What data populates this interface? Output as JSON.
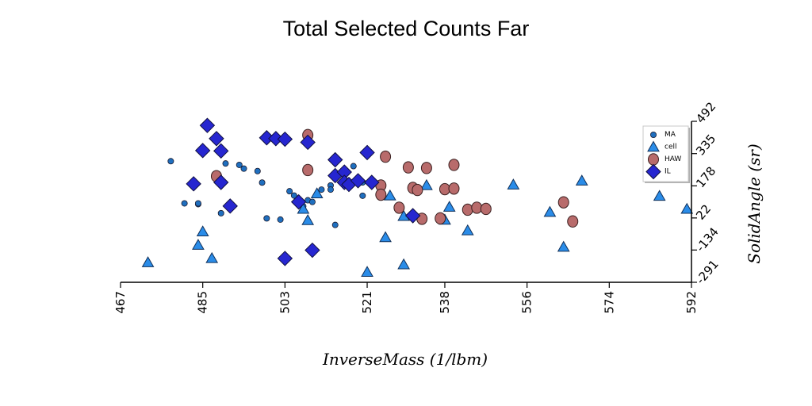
{
  "chart_data": {
    "type": "scatter",
    "title": "Total Selected Counts Far",
    "xlabel": "InverseMass (1/lbm)",
    "ylabel": "SolidAngle (sr)",
    "xlim": [
      467,
      592
    ],
    "ylim": [
      -291,
      492
    ],
    "x_ticks": [
      "467",
      "485",
      "503",
      "521",
      "538",
      "556",
      "574",
      "592"
    ],
    "y_ticks": [
      "-291",
      "-134",
      "22",
      "178",
      "335",
      "492"
    ],
    "legend_position": "upper-right",
    "series": [
      {
        "name": "MA",
        "marker": "circle-small",
        "color": "#1f6fbf",
        "points": [
          [
            478,
            298
          ],
          [
            481,
            93
          ],
          [
            484,
            89
          ],
          [
            484,
            93
          ],
          [
            489,
            45
          ],
          [
            490,
            287
          ],
          [
            493,
            280
          ],
          [
            494,
            262
          ],
          [
            497,
            250
          ],
          [
            498,
            194
          ],
          [
            499,
            20
          ],
          [
            502,
            14
          ],
          [
            504,
            152
          ],
          [
            505,
            131
          ],
          [
            507,
            79
          ],
          [
            508,
            108
          ],
          [
            509,
            100
          ],
          [
            511,
            160
          ],
          [
            513,
            180
          ],
          [
            513,
            160
          ],
          [
            514,
            -12
          ],
          [
            516,
            202
          ],
          [
            518,
            274
          ],
          [
            520,
            195
          ],
          [
            520,
            130
          ]
        ]
      },
      {
        "name": "cell",
        "marker": "triangle",
        "color": "#2a8ce8",
        "points": [
          [
            473,
            -195
          ],
          [
            484,
            -110
          ],
          [
            485,
            -45
          ],
          [
            487,
            -175
          ],
          [
            507,
            65
          ],
          [
            508,
            10
          ],
          [
            510,
            140
          ],
          [
            521,
            -242
          ],
          [
            525,
            -73
          ],
          [
            526,
            130
          ],
          [
            529,
            30
          ],
          [
            529,
            -205
          ],
          [
            534,
            180
          ],
          [
            538,
            12
          ],
          [
            539,
            75
          ],
          [
            543,
            -40
          ],
          [
            553,
            183
          ],
          [
            561,
            50
          ],
          [
            564,
            -120
          ],
          [
            568,
            202
          ],
          [
            585,
            128
          ],
          [
            591,
            65
          ]
        ]
      },
      {
        "name": "HAW",
        "marker": "circle-large",
        "color": "#b86b6b",
        "points": [
          [
            488,
            225
          ],
          [
            508,
            425
          ],
          [
            508,
            255
          ],
          [
            524,
            180
          ],
          [
            524,
            135
          ],
          [
            525,
            320
          ],
          [
            528,
            72
          ],
          [
            530,
            268
          ],
          [
            531,
            168
          ],
          [
            532,
            158
          ],
          [
            533,
            18
          ],
          [
            534,
            265
          ],
          [
            537,
            20
          ],
          [
            538,
            162
          ],
          [
            540,
            280
          ],
          [
            540,
            165
          ],
          [
            543,
            62
          ],
          [
            545,
            72
          ],
          [
            547,
            66
          ],
          [
            564,
            98
          ],
          [
            566,
            5
          ]
        ]
      },
      {
        "name": "IL",
        "marker": "diamond",
        "color": "#2626d0",
        "points": [
          [
            483,
            188
          ],
          [
            485,
            350
          ],
          [
            486,
            472
          ],
          [
            488,
            408
          ],
          [
            489,
            348
          ],
          [
            489,
            195
          ],
          [
            491,
            80
          ],
          [
            499,
            412
          ],
          [
            501,
            408
          ],
          [
            503,
            405
          ],
          [
            503,
            -175
          ],
          [
            506,
            100
          ],
          [
            508,
            390
          ],
          [
            509,
            -135
          ],
          [
            514,
            305
          ],
          [
            514,
            228
          ],
          [
            516,
            245
          ],
          [
            516,
            195
          ],
          [
            517,
            185
          ],
          [
            519,
            203
          ],
          [
            521,
            340
          ],
          [
            522,
            195
          ],
          [
            531,
            33
          ]
        ]
      }
    ]
  }
}
